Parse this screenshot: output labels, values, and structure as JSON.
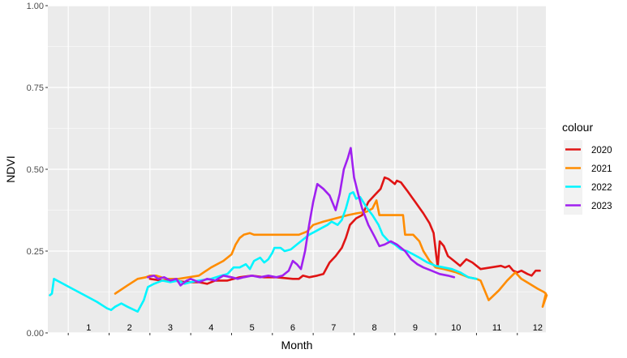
{
  "chart_data": {
    "type": "line",
    "title": "",
    "xlabel": "Month",
    "ylabel": "NDVI",
    "xlim": [
      0.5,
      12.7
    ],
    "ylim": [
      0,
      1
    ],
    "y_ticks": [
      "0.00",
      "0.25",
      "0.50",
      "0.75",
      "1.00"
    ],
    "x_tick_labels": [
      "1",
      "2",
      "3",
      "4",
      "5",
      "6",
      "7",
      "8",
      "9",
      "10",
      "11",
      "12"
    ],
    "grid": true,
    "legend": {
      "title": "colour",
      "position": "right"
    },
    "series": [
      {
        "name": "2020",
        "color": "#e01414",
        "points": [
          [
            3.0,
            0.165
          ],
          [
            3.3,
            0.16
          ],
          [
            3.6,
            0.16
          ],
          [
            3.9,
            0.155
          ],
          [
            4.2,
            0.155
          ],
          [
            4.4,
            0.15
          ],
          [
            4.6,
            0.16
          ],
          [
            4.9,
            0.16
          ],
          [
            5.2,
            0.17
          ],
          [
            5.5,
            0.175
          ],
          [
            5.8,
            0.17
          ],
          [
            6.1,
            0.17
          ],
          [
            6.5,
            0.165
          ],
          [
            6.65,
            0.165
          ],
          [
            6.75,
            0.175
          ],
          [
            6.9,
            0.17
          ],
          [
            7.1,
            0.175
          ],
          [
            7.25,
            0.18
          ],
          [
            7.4,
            0.215
          ],
          [
            7.55,
            0.235
          ],
          [
            7.7,
            0.26
          ],
          [
            7.8,
            0.29
          ],
          [
            7.9,
            0.33
          ],
          [
            8.05,
            0.35
          ],
          [
            8.2,
            0.36
          ],
          [
            8.35,
            0.4
          ],
          [
            8.5,
            0.42
          ],
          [
            8.65,
            0.44
          ],
          [
            8.75,
            0.475
          ],
          [
            8.85,
            0.47
          ],
          [
            9.0,
            0.455
          ],
          [
            9.05,
            0.465
          ],
          [
            9.15,
            0.46
          ],
          [
            9.3,
            0.435
          ],
          [
            9.5,
            0.4
          ],
          [
            9.7,
            0.365
          ],
          [
            9.85,
            0.335
          ],
          [
            9.95,
            0.305
          ],
          [
            10.05,
            0.2
          ],
          [
            10.1,
            0.28
          ],
          [
            10.2,
            0.265
          ],
          [
            10.3,
            0.235
          ],
          [
            10.45,
            0.22
          ],
          [
            10.6,
            0.205
          ],
          [
            10.75,
            0.225
          ],
          [
            10.9,
            0.215
          ],
          [
            11.1,
            0.195
          ],
          [
            11.35,
            0.2
          ],
          [
            11.6,
            0.205
          ],
          [
            11.7,
            0.2
          ],
          [
            11.8,
            0.205
          ],
          [
            11.9,
            0.19
          ],
          [
            12.0,
            0.185
          ],
          [
            12.1,
            0.19
          ],
          [
            12.25,
            0.18
          ],
          [
            12.35,
            0.175
          ],
          [
            12.45,
            0.19
          ],
          [
            12.55,
            0.19
          ]
        ]
      },
      {
        "name": "2021",
        "color": "#ff8c00",
        "points": [
          [
            2.15,
            0.12
          ],
          [
            2.45,
            0.145
          ],
          [
            2.7,
            0.165
          ],
          [
            2.9,
            0.17
          ],
          [
            3.0,
            0.175
          ],
          [
            3.15,
            0.175
          ],
          [
            3.4,
            0.165
          ],
          [
            3.7,
            0.165
          ],
          [
            3.95,
            0.17
          ],
          [
            4.2,
            0.175
          ],
          [
            4.5,
            0.2
          ],
          [
            4.8,
            0.22
          ],
          [
            5.0,
            0.24
          ],
          [
            5.1,
            0.27
          ],
          [
            5.2,
            0.29
          ],
          [
            5.3,
            0.3
          ],
          [
            5.45,
            0.305
          ],
          [
            5.55,
            0.3
          ],
          [
            5.8,
            0.3
          ],
          [
            6.1,
            0.3
          ],
          [
            6.4,
            0.3
          ],
          [
            6.65,
            0.3
          ],
          [
            6.85,
            0.31
          ],
          [
            7.0,
            0.33
          ],
          [
            7.25,
            0.34
          ],
          [
            7.55,
            0.35
          ],
          [
            7.85,
            0.36
          ],
          [
            8.05,
            0.365
          ],
          [
            8.3,
            0.37
          ],
          [
            8.45,
            0.38
          ],
          [
            8.55,
            0.405
          ],
          [
            8.62,
            0.36
          ],
          [
            9.2,
            0.36
          ],
          [
            9.25,
            0.3
          ],
          [
            9.45,
            0.3
          ],
          [
            9.6,
            0.28
          ],
          [
            9.7,
            0.25
          ],
          [
            9.85,
            0.22
          ],
          [
            10.0,
            0.2
          ],
          [
            10.2,
            0.195
          ],
          [
            10.5,
            0.185
          ],
          [
            10.8,
            0.17
          ],
          [
            11.0,
            0.165
          ],
          [
            11.1,
            0.16
          ],
          [
            11.3,
            0.1
          ],
          [
            11.55,
            0.13
          ],
          [
            11.75,
            0.16
          ],
          [
            11.95,
            0.185
          ],
          [
            12.1,
            0.165
          ],
          [
            12.3,
            0.15
          ],
          [
            12.5,
            0.135
          ],
          [
            12.65,
            0.125
          ],
          [
            12.7,
            0.12
          ],
          [
            12.62,
            0.08
          ],
          [
            12.72,
            0.115
          ]
        ]
      },
      {
        "name": "2022",
        "color": "#00f5ff",
        "points": [
          [
            0.55,
            0.115
          ],
          [
            0.6,
            0.12
          ],
          [
            0.65,
            0.165
          ],
          [
            0.8,
            0.155
          ],
          [
            1.1,
            0.135
          ],
          [
            1.4,
            0.115
          ],
          [
            1.7,
            0.095
          ],
          [
            1.95,
            0.075
          ],
          [
            2.05,
            0.07
          ],
          [
            2.15,
            0.08
          ],
          [
            2.3,
            0.09
          ],
          [
            2.45,
            0.08
          ],
          [
            2.7,
            0.065
          ],
          [
            2.85,
            0.1
          ],
          [
            2.95,
            0.14
          ],
          [
            3.1,
            0.15
          ],
          [
            3.3,
            0.16
          ],
          [
            3.5,
            0.155
          ],
          [
            3.7,
            0.16
          ],
          [
            3.85,
            0.15
          ],
          [
            4.0,
            0.155
          ],
          [
            4.2,
            0.16
          ],
          [
            4.5,
            0.165
          ],
          [
            4.75,
            0.175
          ],
          [
            4.9,
            0.18
          ],
          [
            5.05,
            0.2
          ],
          [
            5.2,
            0.2
          ],
          [
            5.35,
            0.21
          ],
          [
            5.45,
            0.195
          ],
          [
            5.55,
            0.22
          ],
          [
            5.7,
            0.23
          ],
          [
            5.8,
            0.215
          ],
          [
            5.9,
            0.225
          ],
          [
            6.0,
            0.245
          ],
          [
            6.05,
            0.26
          ],
          [
            6.2,
            0.26
          ],
          [
            6.3,
            0.25
          ],
          [
            6.45,
            0.255
          ],
          [
            6.6,
            0.27
          ],
          [
            6.75,
            0.285
          ],
          [
            6.9,
            0.3
          ],
          [
            7.05,
            0.31
          ],
          [
            7.2,
            0.32
          ],
          [
            7.35,
            0.33
          ],
          [
            7.45,
            0.34
          ],
          [
            7.6,
            0.33
          ],
          [
            7.7,
            0.345
          ],
          [
            7.8,
            0.38
          ],
          [
            7.9,
            0.425
          ],
          [
            7.98,
            0.43
          ],
          [
            8.05,
            0.41
          ],
          [
            8.15,
            0.415
          ],
          [
            8.3,
            0.385
          ],
          [
            8.45,
            0.36
          ],
          [
            8.6,
            0.33
          ],
          [
            8.7,
            0.3
          ],
          [
            8.85,
            0.28
          ],
          [
            9.0,
            0.27
          ],
          [
            9.15,
            0.255
          ],
          [
            9.3,
            0.25
          ],
          [
            9.45,
            0.24
          ],
          [
            9.6,
            0.23
          ],
          [
            9.8,
            0.215
          ],
          [
            10.0,
            0.205
          ],
          [
            10.2,
            0.2
          ],
          [
            10.4,
            0.195
          ],
          [
            10.6,
            0.185
          ],
          [
            10.8,
            0.17
          ],
          [
            11.0,
            0.165
          ]
        ]
      },
      {
        "name": "2023",
        "color": "#a020f0",
        "points": [
          [
            2.95,
            0.17
          ],
          [
            3.1,
            0.175
          ],
          [
            3.2,
            0.165
          ],
          [
            3.35,
            0.17
          ],
          [
            3.5,
            0.16
          ],
          [
            3.65,
            0.165
          ],
          [
            3.75,
            0.145
          ],
          [
            3.9,
            0.16
          ],
          [
            4.0,
            0.165
          ],
          [
            4.2,
            0.155
          ],
          [
            4.4,
            0.165
          ],
          [
            4.6,
            0.16
          ],
          [
            4.8,
            0.175
          ],
          [
            5.0,
            0.17
          ],
          [
            5.15,
            0.165
          ],
          [
            5.3,
            0.17
          ],
          [
            5.5,
            0.175
          ],
          [
            5.7,
            0.17
          ],
          [
            5.9,
            0.175
          ],
          [
            6.1,
            0.17
          ],
          [
            6.25,
            0.175
          ],
          [
            6.4,
            0.19
          ],
          [
            6.5,
            0.22
          ],
          [
            6.6,
            0.21
          ],
          [
            6.7,
            0.195
          ],
          [
            6.8,
            0.25
          ],
          [
            6.9,
            0.33
          ],
          [
            7.0,
            0.4
          ],
          [
            7.1,
            0.455
          ],
          [
            7.25,
            0.44
          ],
          [
            7.4,
            0.42
          ],
          [
            7.55,
            0.375
          ],
          [
            7.65,
            0.425
          ],
          [
            7.75,
            0.5
          ],
          [
            7.85,
            0.535
          ],
          [
            7.92,
            0.565
          ],
          [
            8.0,
            0.475
          ],
          [
            8.1,
            0.425
          ],
          [
            8.2,
            0.38
          ],
          [
            8.35,
            0.33
          ],
          [
            8.5,
            0.295
          ],
          [
            8.62,
            0.265
          ],
          [
            8.75,
            0.27
          ],
          [
            8.9,
            0.28
          ],
          [
            9.05,
            0.27
          ],
          [
            9.25,
            0.25
          ],
          [
            9.4,
            0.225
          ],
          [
            9.55,
            0.21
          ],
          [
            9.7,
            0.2
          ],
          [
            9.9,
            0.19
          ],
          [
            10.1,
            0.18
          ],
          [
            10.3,
            0.175
          ],
          [
            10.45,
            0.17
          ]
        ]
      }
    ]
  }
}
